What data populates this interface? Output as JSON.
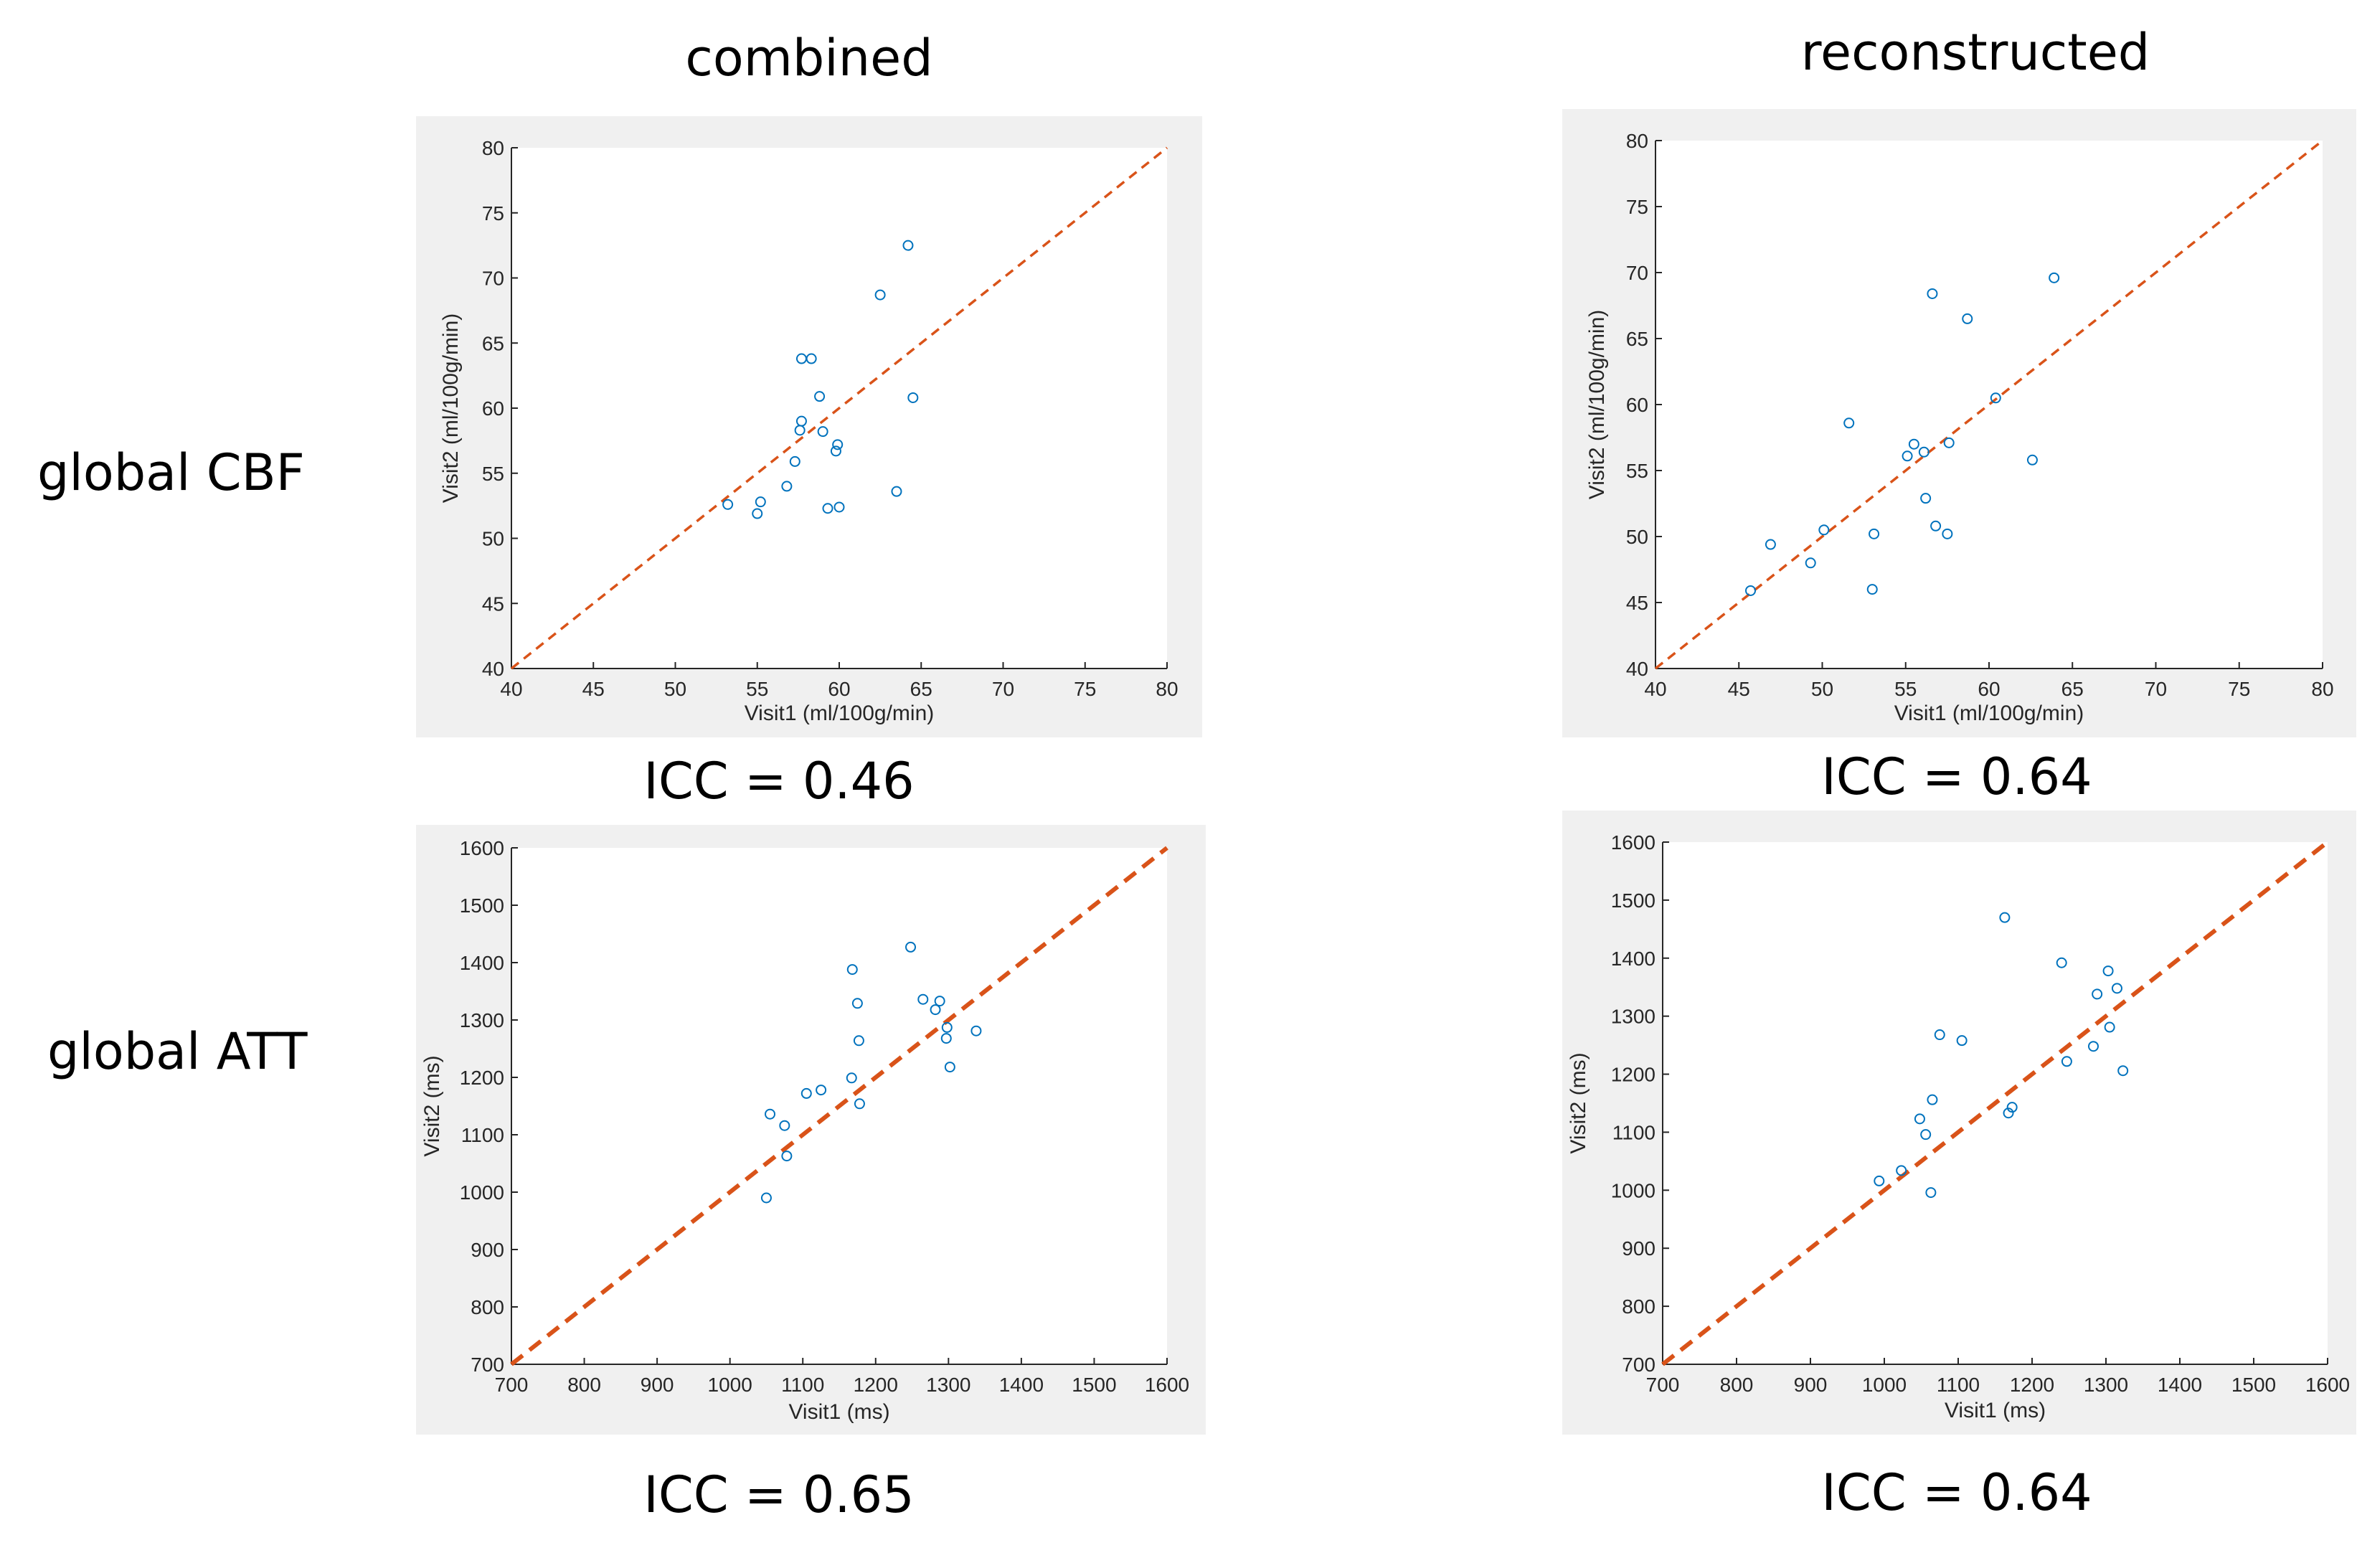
{
  "column_titles": [
    "combined",
    "reconstructed"
  ],
  "row_titles": [
    "global CBF",
    "global ATT"
  ],
  "colors": {
    "marker": "#0072BD",
    "identity_line": "#D95319",
    "axes": "#262626",
    "panel_bg": "#f0f0f0"
  },
  "chart_data": [
    {
      "type": "scatter",
      "column": "combined",
      "row": "global CBF",
      "xlabel": "Visit1 (ml/100g/min)",
      "ylabel": "Visit2 (ml/100g/min)",
      "xlim": [
        40,
        80
      ],
      "ylim": [
        40,
        80
      ],
      "xticks": [
        40,
        45,
        50,
        55,
        60,
        65,
        70,
        75,
        80
      ],
      "yticks": [
        40,
        45,
        50,
        55,
        60,
        65,
        70,
        75,
        80
      ],
      "identity_line": true,
      "grid": false,
      "icc_label": "ICC = 0.46",
      "points": [
        [
          53.2,
          52.6
        ],
        [
          55.0,
          51.9
        ],
        [
          55.2,
          52.8
        ],
        [
          56.8,
          54.0
        ],
        [
          57.3,
          55.9
        ],
        [
          57.6,
          58.3
        ],
        [
          57.7,
          59.0
        ],
        [
          57.7,
          63.8
        ],
        [
          58.3,
          63.8
        ],
        [
          58.8,
          60.9
        ],
        [
          59.0,
          58.2
        ],
        [
          59.3,
          52.3
        ],
        [
          59.8,
          56.7
        ],
        [
          59.9,
          57.2
        ],
        [
          60.0,
          52.4
        ],
        [
          62.5,
          68.7
        ],
        [
          63.5,
          53.6
        ],
        [
          64.2,
          72.5
        ],
        [
          64.5,
          60.8
        ]
      ]
    },
    {
      "type": "scatter",
      "column": "reconstructed",
      "row": "global CBF",
      "xlabel": "Visit1 (ml/100g/min)",
      "ylabel": "Visit2 (ml/100g/min)",
      "xlim": [
        40,
        80
      ],
      "ylim": [
        40,
        80
      ],
      "xticks": [
        40,
        45,
        50,
        55,
        60,
        65,
        70,
        75,
        80
      ],
      "yticks": [
        40,
        45,
        50,
        55,
        60,
        65,
        70,
        75,
        80
      ],
      "identity_line": true,
      "grid": false,
      "icc_label": "ICC = 0.64",
      "points": [
        [
          45.7,
          45.9
        ],
        [
          46.9,
          49.4
        ],
        [
          49.3,
          48.0
        ],
        [
          50.1,
          50.5
        ],
        [
          51.6,
          58.6
        ],
        [
          53.0,
          46.0
        ],
        [
          53.1,
          50.2
        ],
        [
          55.1,
          56.1
        ],
        [
          55.5,
          57.0
        ],
        [
          56.1,
          56.4
        ],
        [
          56.2,
          52.9
        ],
        [
          56.6,
          68.4
        ],
        [
          56.8,
          50.8
        ],
        [
          57.5,
          50.2
        ],
        [
          57.6,
          57.1
        ],
        [
          58.7,
          66.5
        ],
        [
          60.4,
          60.5
        ],
        [
          62.6,
          55.8
        ],
        [
          63.9,
          69.6
        ]
      ]
    },
    {
      "type": "scatter",
      "column": "combined",
      "row": "global ATT",
      "xlabel": "Visit1 (ms)",
      "ylabel": "Visit2 (ms)",
      "xlim": [
        700,
        1600
      ],
      "ylim": [
        700,
        1600
      ],
      "xticks": [
        700,
        800,
        900,
        1000,
        1100,
        1200,
        1300,
        1400,
        1500,
        1600
      ],
      "yticks": [
        700,
        800,
        900,
        1000,
        1100,
        1200,
        1300,
        1400,
        1500,
        1600
      ],
      "identity_line": true,
      "grid": false,
      "icc_label": "ICC = 0.65",
      "points": [
        [
          1050,
          990
        ],
        [
          1055,
          1136
        ],
        [
          1075,
          1116
        ],
        [
          1078,
          1063
        ],
        [
          1105,
          1172
        ],
        [
          1125,
          1178
        ],
        [
          1167,
          1199
        ],
        [
          1168,
          1388
        ],
        [
          1175,
          1329
        ],
        [
          1177,
          1264
        ],
        [
          1178,
          1154
        ],
        [
          1248,
          1427
        ],
        [
          1265,
          1336
        ],
        [
          1282,
          1318
        ],
        [
          1288,
          1333
        ],
        [
          1297,
          1268
        ],
        [
          1298,
          1287
        ],
        [
          1302,
          1218
        ],
        [
          1338,
          1281
        ]
      ]
    },
    {
      "type": "scatter",
      "column": "reconstructed",
      "row": "global ATT",
      "xlabel": "Visit1 (ms)",
      "ylabel": "Visit2 (ms)",
      "xlim": [
        700,
        1600
      ],
      "ylim": [
        700,
        1600
      ],
      "xticks": [
        700,
        800,
        900,
        1000,
        1100,
        1200,
        1300,
        1400,
        1500,
        1600
      ],
      "yticks": [
        700,
        800,
        900,
        1000,
        1100,
        1200,
        1300,
        1400,
        1500,
        1600
      ],
      "identity_line": true,
      "grid": false,
      "icc_label": "ICC = 0.64",
      "points": [
        [
          993,
          1016
        ],
        [
          1023,
          1034
        ],
        [
          1048,
          1123
        ],
        [
          1056,
          1096
        ],
        [
          1063,
          996
        ],
        [
          1065,
          1156
        ],
        [
          1075,
          1268
        ],
        [
          1105,
          1258
        ],
        [
          1163,
          1470
        ],
        [
          1168,
          1133
        ],
        [
          1173,
          1143
        ],
        [
          1240,
          1392
        ],
        [
          1247,
          1222
        ],
        [
          1283,
          1248
        ],
        [
          1288,
          1338
        ],
        [
          1303,
          1378
        ],
        [
          1305,
          1281
        ],
        [
          1315,
          1348
        ],
        [
          1323,
          1206
        ]
      ]
    }
  ]
}
